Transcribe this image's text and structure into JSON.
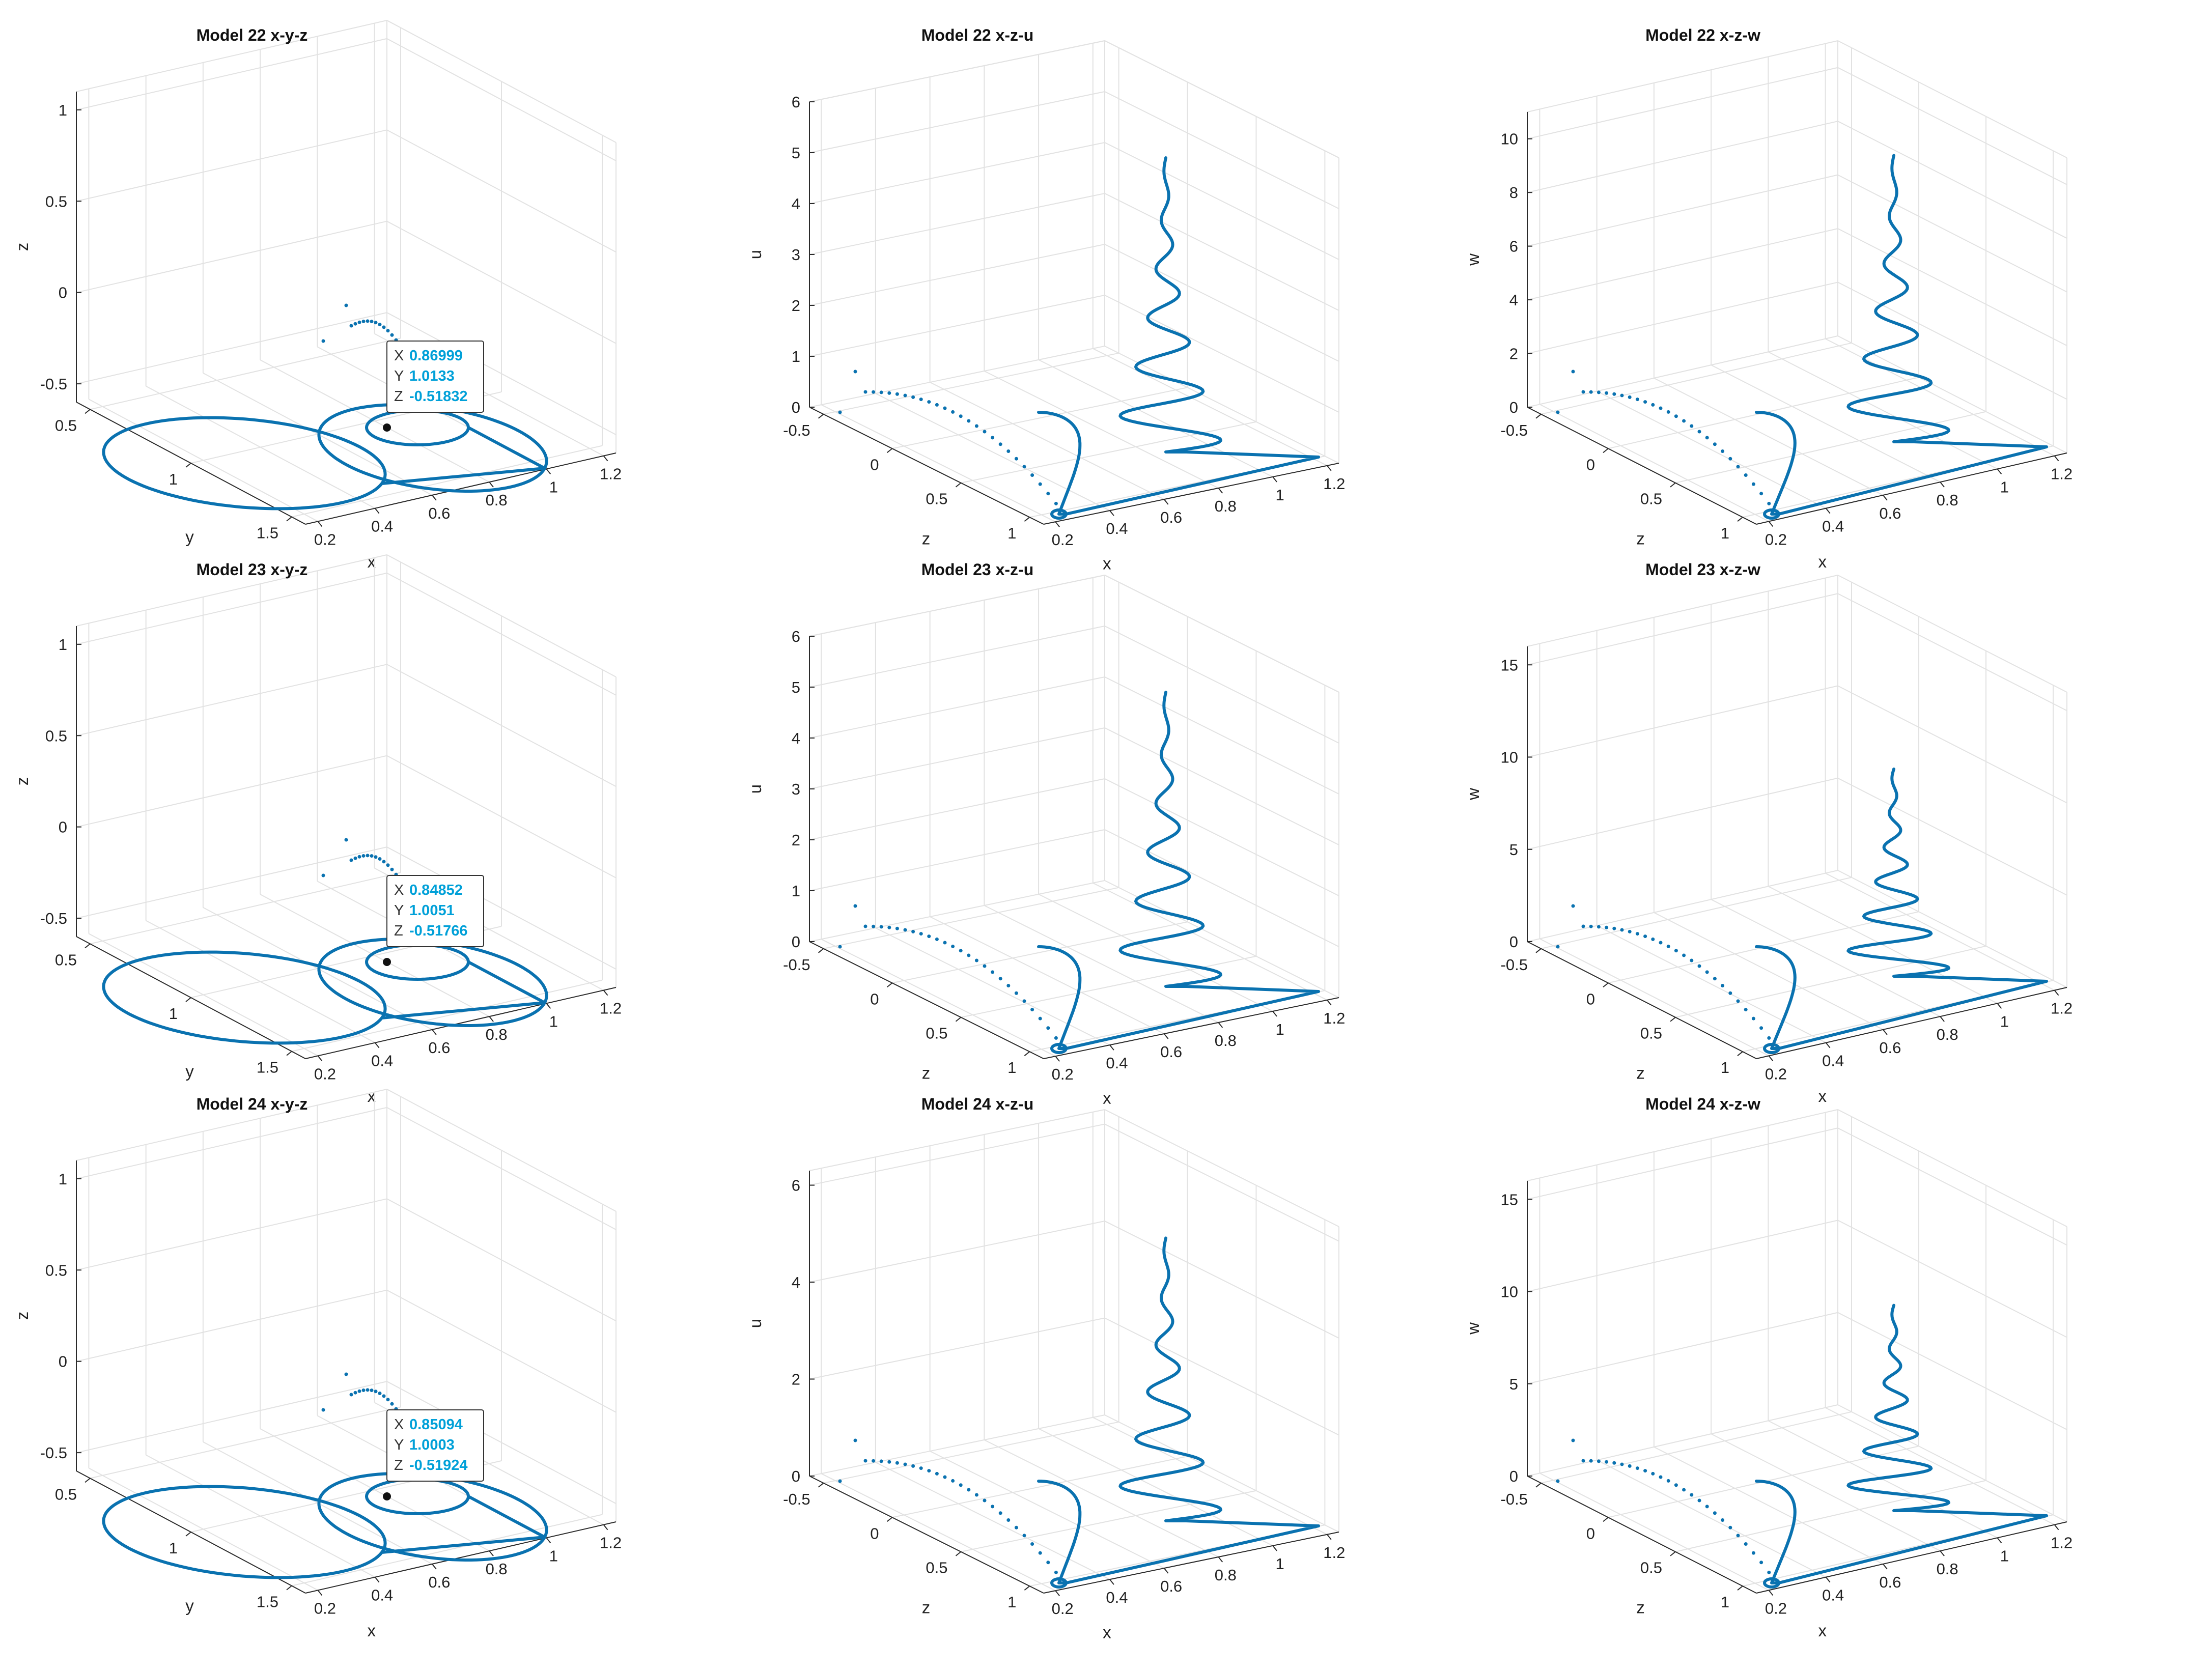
{
  "colors": {
    "series": "#0a72b0",
    "tip_value": "#00a0d8"
  },
  "chart_data": [
    {
      "type": "line3d",
      "kind": "xyz",
      "title": "Model 22 x-y-z",
      "axes": {
        "x": "x",
        "y": "y",
        "z": "z"
      },
      "xticks": [
        "0.2",
        "0.4",
        "0.6",
        "0.8",
        "1",
        "1.2"
      ],
      "yticks": [
        "0.5",
        "1",
        "1.5"
      ],
      "zticks": [
        "-0.5",
        "0",
        "0.5",
        "1"
      ],
      "zlim": [
        -0.6,
        1.1
      ],
      "datatip": {
        "X": "0.86999",
        "Y": "1.0133",
        "Z": "-0.51832"
      }
    },
    {
      "type": "line3d",
      "kind": "xzu",
      "title": "Model 22 x-z-u",
      "axes": {
        "x": "x",
        "y": "z",
        "z": "u"
      },
      "xticks": [
        "0.2",
        "0.4",
        "0.6",
        "0.8",
        "1",
        "1.2"
      ],
      "yticks": [
        "-0.5",
        "0",
        "0.5",
        "1"
      ],
      "zticks": [
        "0",
        "1",
        "2",
        "3",
        "4",
        "5",
        "6"
      ],
      "zlim": [
        0,
        6
      ],
      "peak": 4.7
    },
    {
      "type": "line3d",
      "kind": "xzw",
      "title": "Model 22 x-z-w",
      "axes": {
        "x": "x",
        "y": "z",
        "z": "w"
      },
      "xticks": [
        "0.2",
        "0.4",
        "0.6",
        "0.8",
        "1",
        "1.2"
      ],
      "yticks": [
        "-0.5",
        "0",
        "0.5",
        "1"
      ],
      "zticks": [
        "0",
        "2",
        "4",
        "6",
        "8",
        "10"
      ],
      "zlim": [
        0,
        11
      ],
      "peak": 9.0
    },
    {
      "type": "line3d",
      "kind": "xyz",
      "title": "Model 23 x-y-z",
      "axes": {
        "x": "x",
        "y": "y",
        "z": "z"
      },
      "xticks": [
        "0.2",
        "0.4",
        "0.6",
        "0.8",
        "1",
        "1.2"
      ],
      "yticks": [
        "0.5",
        "1",
        "1.5"
      ],
      "zticks": [
        "-0.5",
        "0",
        "0.5",
        "1"
      ],
      "zlim": [
        -0.6,
        1.1
      ],
      "datatip": {
        "X": "0.84852",
        "Y": "1.0051",
        "Z": "-0.51766"
      }
    },
    {
      "type": "line3d",
      "kind": "xzu",
      "title": "Model 23 x-z-u",
      "axes": {
        "x": "x",
        "y": "z",
        "z": "u"
      },
      "xticks": [
        "0.2",
        "0.4",
        "0.6",
        "0.8",
        "1",
        "1.2"
      ],
      "yticks": [
        "-0.5",
        "0",
        "0.5",
        "1"
      ],
      "zticks": [
        "0",
        "1",
        "2",
        "3",
        "4",
        "5",
        "6"
      ],
      "zlim": [
        0,
        6
      ],
      "peak": 4.7
    },
    {
      "type": "line3d",
      "kind": "xzw",
      "title": "Model 23 x-z-w",
      "axes": {
        "x": "x",
        "y": "z",
        "z": "w"
      },
      "xticks": [
        "0.2",
        "0.4",
        "0.6",
        "0.8",
        "1",
        "1.2"
      ],
      "yticks": [
        "-0.5",
        "0",
        "0.5",
        "1"
      ],
      "zticks": [
        "0",
        "5",
        "10",
        "15"
      ],
      "zlim": [
        0,
        16
      ],
      "peak": 8.8
    },
    {
      "type": "line3d",
      "kind": "xyz",
      "title": "Model 24 x-y-z",
      "axes": {
        "x": "x",
        "y": "y",
        "z": "z"
      },
      "xticks": [
        "0.2",
        "0.4",
        "0.6",
        "0.8",
        "1",
        "1.2"
      ],
      "yticks": [
        "0.5",
        "1",
        "1.5"
      ],
      "zticks": [
        "-0.5",
        "0",
        "0.5",
        "1"
      ],
      "zlim": [
        -0.6,
        1.1
      ],
      "datatip": {
        "X": "0.85094",
        "Y": "1.0003",
        "Z": "-0.51924"
      }
    },
    {
      "type": "line3d",
      "kind": "xzu",
      "title": "Model 24 x-z-u",
      "axes": {
        "x": "x",
        "y": "z",
        "z": "u"
      },
      "xticks": [
        "0.2",
        "0.4",
        "0.6",
        "0.8",
        "1",
        "1.2"
      ],
      "yticks": [
        "-0.5",
        "0",
        "0.5",
        "1"
      ],
      "zticks": [
        "0",
        "2",
        "4",
        "6"
      ],
      "zlim": [
        0,
        6.3
      ],
      "peak": 4.7
    },
    {
      "type": "line3d",
      "kind": "xzw",
      "title": "Model 24 x-z-w",
      "axes": {
        "x": "x",
        "y": "z",
        "z": "w"
      },
      "xticks": [
        "0.2",
        "0.4",
        "0.6",
        "0.8",
        "1",
        "1.2"
      ],
      "yticks": [
        "-0.5",
        "0",
        "0.5",
        "1"
      ],
      "zticks": [
        "0",
        "5",
        "10",
        "15"
      ],
      "zlim": [
        0,
        16
      ],
      "peak": 8.7
    }
  ]
}
